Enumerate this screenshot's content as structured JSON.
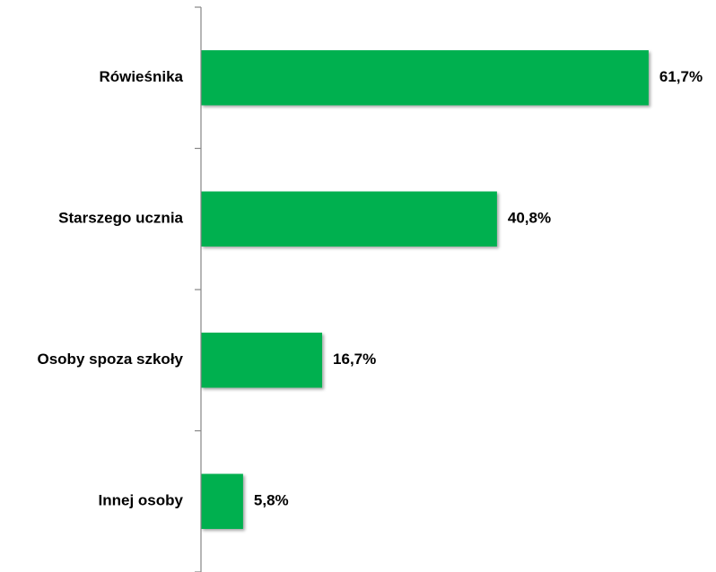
{
  "chart_data": {
    "type": "bar",
    "orientation": "horizontal",
    "categories": [
      "Rówieśnika",
      "Starszego ucznia",
      "Osoby spoza szkoły",
      "Innej osoby"
    ],
    "values": [
      61.7,
      40.8,
      16.7,
      5.8
    ],
    "value_labels": [
      "61,7%",
      "40,8%",
      "16,7%",
      "5,8%"
    ],
    "title": "",
    "xlabel": "",
    "ylabel": "",
    "xlim": [
      0,
      70
    ],
    "grid": false,
    "legend": "none",
    "bar_color": "#00b050",
    "axis_color": "#868686"
  }
}
